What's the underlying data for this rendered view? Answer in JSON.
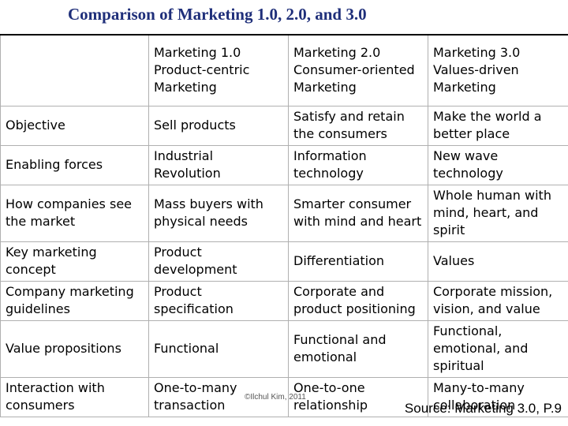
{
  "title": "Comparison of Marketing 1.0, 2.0, and 3.0",
  "header": {
    "blank": "",
    "m1": "Marketing 1.0 Product-centric Marketing",
    "m2": "Marketing 2.0 Consumer-oriented Marketing",
    "m3": "Marketing 3.0 Values-driven Marketing"
  },
  "rows": [
    {
      "label": "Objective",
      "m1": "Sell products",
      "m2": "Satisfy and retain the consumers",
      "m3": "Make the world a better place"
    },
    {
      "label": "Enabling forces",
      "m1": "Industrial Revolution",
      "m2": "Information technology",
      "m3": "New wave technology"
    },
    {
      "label": "How companies see the market",
      "m1": "Mass buyers with physical needs",
      "m2": "Smarter consumer with mind and heart",
      "m3": "Whole human with mind, heart, and spirit"
    },
    {
      "label": "Key marketing concept",
      "m1": "Product development",
      "m2": "Differentiation",
      "m3": "Values"
    },
    {
      "label": "Company marketing guidelines",
      "m1": "Product specification",
      "m2": "Corporate and product positioning",
      "m3": "Corporate mission, vision, and value"
    },
    {
      "label": "Value propositions",
      "m1": "Functional",
      "m2": "Functional and emotional",
      "m3": "Functional, emotional, and spiritual"
    },
    {
      "label": "Interaction with consumers",
      "m1": "One-to-many transaction",
      "m2": "One-to-one relationship",
      "m3": "Many-to-many collaboration"
    }
  ],
  "footer": {
    "copyright": "©Ilchul Kim, 2011",
    "source": "Source: Marketing 3.0, P.9"
  }
}
